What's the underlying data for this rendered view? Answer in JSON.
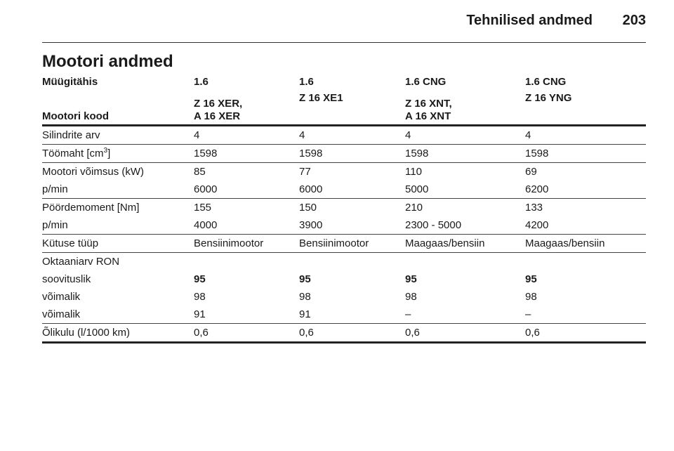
{
  "page": {
    "header_title": "Tehnilised andmed",
    "page_number": "203",
    "section_title": "Mootori andmed"
  },
  "table": {
    "sales_label": "Müügitähis",
    "sales_values": [
      "1.6",
      "1.6",
      "1.6 CNG",
      "1.6 CNG"
    ],
    "engine_code_label": "Mootori kood",
    "engine_codes": [
      [
        "Z 16 XER,",
        "A 16 XER"
      ],
      [
        "Z 16 XE1",
        ""
      ],
      [
        "Z 16 XNT,",
        "A 16 XNT"
      ],
      [
        "Z 16 YNG",
        ""
      ]
    ],
    "cylinders": {
      "label": "Silindrite arv",
      "values": [
        "4",
        "4",
        "4",
        "4"
      ]
    },
    "displacement": {
      "label": "Töömaht [cm",
      "sup": "3",
      "label_end": "]",
      "values": [
        "1598",
        "1598",
        "1598",
        "1598"
      ]
    },
    "power": {
      "label": "Mootori võimsus (kW)",
      "values": [
        "85",
        "77",
        "110",
        "69"
      ]
    },
    "power_rpm": {
      "label": "p/min",
      "values": [
        "6000",
        "6000",
        "5000",
        "6200"
      ]
    },
    "torque": {
      "label": "Pöördemoment [Nm]",
      "values": [
        "155",
        "150",
        "210",
        "133"
      ]
    },
    "torque_rpm": {
      "label": "p/min",
      "values": [
        "4000",
        "3900",
        "2300 - 5000",
        "4200"
      ]
    },
    "fuel_type": {
      "label": "Kütuse tüüp",
      "values": [
        "Bensiinimootor",
        "Bensiinimootor",
        "Maagaas/bensiin",
        "Maagaas/bensiin"
      ]
    },
    "octane": {
      "label": "Oktaaniarv RON"
    },
    "octane_recommended": {
      "label": "soovituslik",
      "values": [
        "95",
        "95",
        "95",
        "95"
      ]
    },
    "octane_possible_1": {
      "label": "võimalik",
      "values": [
        "98",
        "98",
        "98",
        "98"
      ]
    },
    "octane_possible_2": {
      "label": "võimalik",
      "values": [
        "91",
        "91",
        "–",
        "–"
      ]
    },
    "oil_consumption": {
      "label": "Õlikulu (l/1000 km)",
      "values": [
        "0,6",
        "0,6",
        "0,6",
        "0,6"
      ]
    }
  }
}
